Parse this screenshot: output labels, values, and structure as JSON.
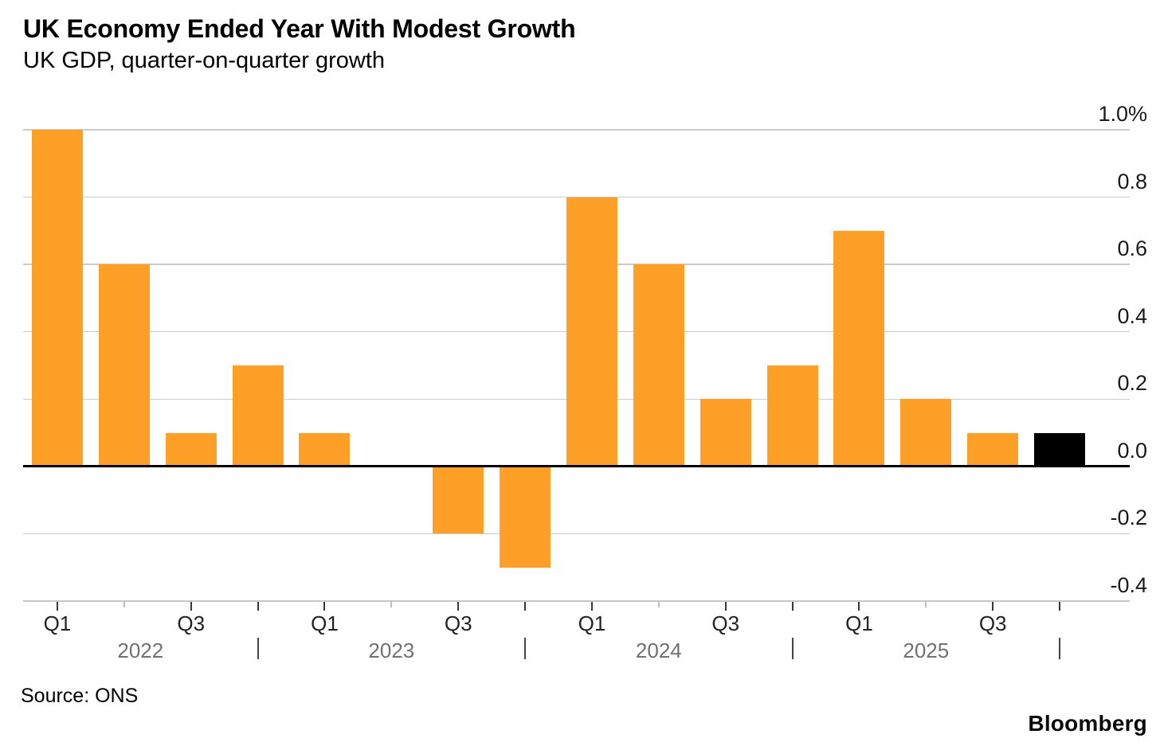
{
  "header": {
    "title": "UK Economy Ended Year With Modest Growth",
    "subtitle": "UK GDP, quarter-on-quarter growth"
  },
  "footer": {
    "source": "Source: ONS",
    "brand": "Bloomberg"
  },
  "colors": {
    "bar": "#FEA028",
    "highlight_bar": "#000000",
    "gridline": "#CBCBCB",
    "zero_line": "#000000",
    "axis_line": "#C6C6C6",
    "tick_major": "#383838",
    "tick_minor": "#BDBDBD",
    "quarter_label": "#222222",
    "year_label": "#717171",
    "year_separator": "#444444",
    "value_label": "#1A1A1A"
  },
  "chart_data": {
    "type": "bar",
    "title": "UK Economy Ended Year With Modest Growth",
    "subtitle": "UK GDP, quarter-on-quarter growth",
    "unit": "%",
    "categories": [
      "Q1 2022",
      "Q2 2022",
      "Q3 2022",
      "Q4 2022",
      "Q1 2023",
      "Q2 2023",
      "Q3 2023",
      "Q4 2023",
      "Q1 2024",
      "Q2 2024",
      "Q3 2024",
      "Q4 2024",
      "Q1 2025",
      "Q2 2025",
      "Q3 2025",
      "Q4 2025"
    ],
    "values": [
      1.0,
      0.6,
      0.1,
      0.3,
      0.1,
      0.0,
      -0.2,
      -0.3,
      0.8,
      0.6,
      0.2,
      0.3,
      0.7,
      0.2,
      0.1,
      0.1
    ],
    "highlight_index": 15,
    "ylim": [
      -0.4,
      1.0
    ],
    "grid": true,
    "legend": "none",
    "y_axis": {
      "side": "right",
      "ticks": [
        {
          "v": 1.0,
          "label": "1.0%"
        },
        {
          "v": 0.8,
          "label": "0.8"
        },
        {
          "v": 0.6,
          "label": "0.6"
        },
        {
          "v": 0.4,
          "label": "0.4"
        },
        {
          "v": 0.2,
          "label": "0.2"
        },
        {
          "v": 0.0,
          "label": "0.0"
        },
        {
          "v": -0.2,
          "label": "-0.2"
        },
        {
          "v": -0.4,
          "label": "-0.4"
        }
      ]
    },
    "x_axis": {
      "quarter_tick_labels": [
        "Q1",
        "",
        "Q3",
        ""
      ],
      "years": [
        "2022",
        "2023",
        "2024",
        "2025"
      ],
      "year_separator": "|"
    }
  }
}
